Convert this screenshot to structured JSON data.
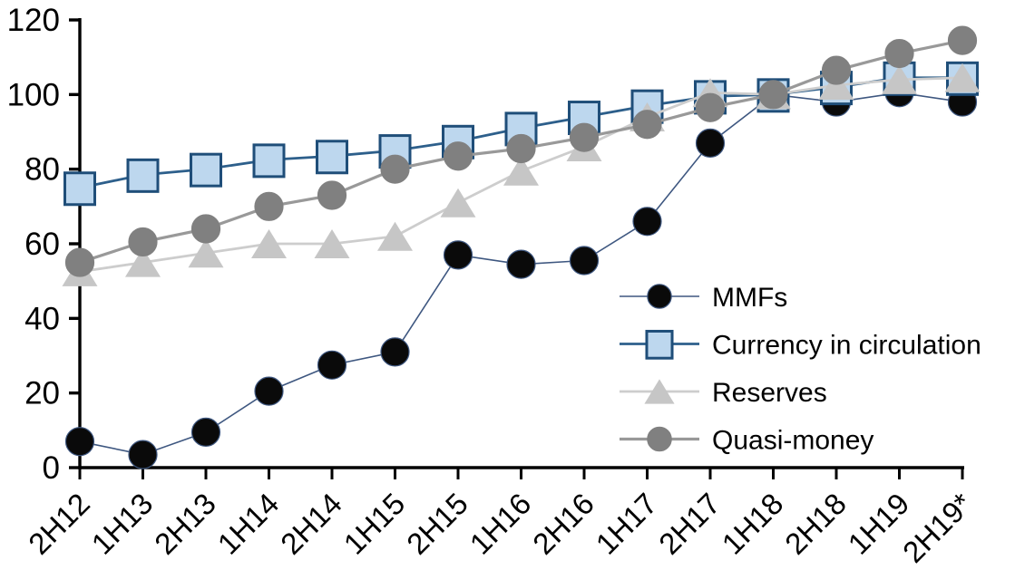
{
  "chart_data": {
    "type": "line",
    "title": "",
    "xlabel": "",
    "ylabel": "",
    "categories": [
      "2H12",
      "1H13",
      "2H13",
      "1H14",
      "2H14",
      "1H15",
      "2H15",
      "1H16",
      "2H16",
      "1H17",
      "2H17",
      "1H18",
      "2H18",
      "1H19",
      "2H19*"
    ],
    "series": [
      {
        "name": "MMFs",
        "marker": "circle",
        "marker_fill": "#0a0a0a",
        "marker_border": "#3e5780",
        "line_color": "#3e5780",
        "line_width": 1.6,
        "values": [
          7,
          3.5,
          9.5,
          20.5,
          27.5,
          31,
          57,
          54.5,
          55.5,
          66,
          87,
          100,
          98,
          100.5,
          98
        ]
      },
      {
        "name": "Currency in circulation",
        "marker": "square",
        "marker_fill": "#bdd7ee",
        "marker_border": "#1f4e79",
        "line_color": "#2d5f8b",
        "line_width": 2.8,
        "values": [
          75,
          78.5,
          80,
          82.5,
          83.5,
          85,
          87.5,
          91,
          94,
          97,
          99.5,
          100,
          102,
          104.5,
          104.5
        ]
      },
      {
        "name": "Reserves",
        "marker": "triangle",
        "marker_fill": "#c6c6c6",
        "marker_border": "#c6c6c6",
        "line_color": "#cdcdcd",
        "line_width": 2.8,
        "values": [
          52.5,
          55,
          57.5,
          60,
          60,
          62,
          71,
          79.5,
          86,
          94,
          100.5,
          100,
          102.5,
          104,
          104.5
        ]
      },
      {
        "name": "Quasi-money",
        "marker": "circle",
        "marker_fill": "#808080",
        "marker_border": "#808080",
        "line_color": "#999999",
        "line_width": 3.2,
        "values": [
          55,
          60.5,
          64,
          70,
          73,
          80,
          83.5,
          85.5,
          88.5,
          92,
          96.5,
          100,
          106.5,
          111,
          114.5
        ]
      }
    ],
    "ylim": [
      0,
      120
    ],
    "ytick_step": 20,
    "ytick_labels": [
      "0",
      "20",
      "40",
      "60",
      "80",
      "100",
      "120"
    ],
    "grid": "off",
    "legend_position": "inside-right",
    "legend_labels": [
      "MMFs",
      "Currency in circulation",
      "Reserves",
      "Quasi-money"
    ],
    "axis_color": "#000000"
  }
}
